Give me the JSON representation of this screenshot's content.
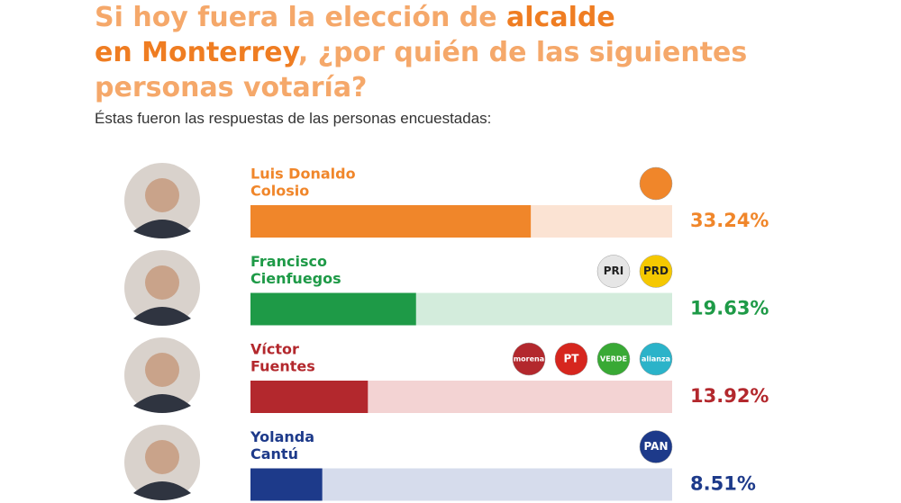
{
  "chart_data": {
    "type": "bar",
    "title": [
      {
        "text": "Si  hoy fuera la elección de ",
        "color": "#f5a86a"
      },
      {
        "text": "alcalde",
        "color": "#ef7d22"
      },
      {
        "text": "en Monterrey",
        "color": "#ef7d22"
      },
      {
        "text": ", ¿por quién de las siguientes personas votaría?",
        "color": "#f5a86a"
      }
    ],
    "subtitle": "Éstas fueron las respuestas de las personas encuestadas:",
    "categories": [
      [
        "Luis Donaldo",
        "Colosio"
      ],
      [
        "Francisco",
        "Cienfuegos"
      ],
      [
        "Víctor",
        "Fuentes"
      ],
      [
        "Yolanda",
        "Cantú"
      ]
    ],
    "values": [
      33.24,
      19.63,
      13.92,
      8.51
    ],
    "value_labels": [
      "33.24%",
      "19.63%",
      "13.92%",
      "8.51%"
    ],
    "colors": [
      "#f0862a",
      "#1e9a47",
      "#b3282d",
      "#1d3a8a"
    ],
    "track_colors": [
      "#fbe3d3",
      "#d3ecdc",
      "#f3d3d3",
      "#d6dcec"
    ],
    "xlim": [
      0,
      50
    ],
    "parties": [
      [
        {
          "color": "#f0862a"
        }
      ],
      [
        {
          "label": "PRI",
          "color": "#e6e6e6"
        },
        {
          "label": "PRD",
          "color": "#f5c800"
        }
      ],
      [
        {
          "label": "morena",
          "color": "#b3282d"
        },
        {
          "label": "PT",
          "color": "#d6261e"
        },
        {
          "label": "VERDE",
          "color": "#39a935"
        },
        {
          "label": "alianza",
          "color": "#2bb3c9"
        }
      ],
      [
        {
          "label": "PAN",
          "color": "#1d3a8a"
        }
      ]
    ]
  }
}
